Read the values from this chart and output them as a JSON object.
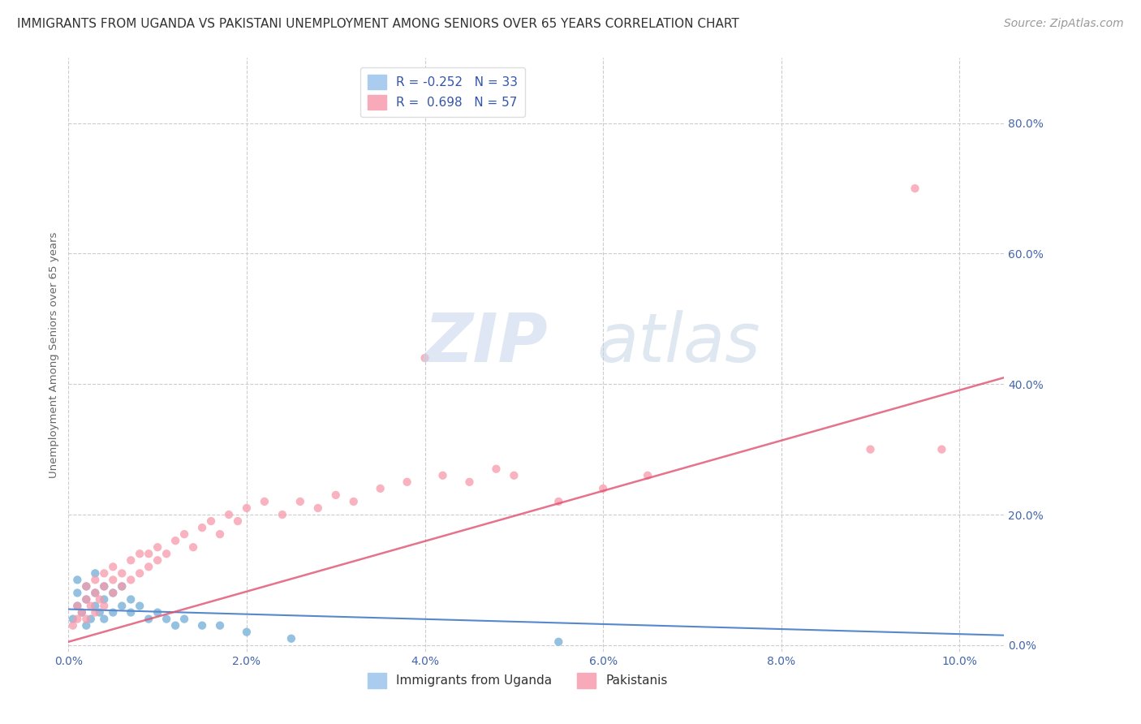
{
  "title": "IMMIGRANTS FROM UGANDA VS PAKISTANI UNEMPLOYMENT AMONG SENIORS OVER 65 YEARS CORRELATION CHART",
  "source": "Source: ZipAtlas.com",
  "ylabel": "Unemployment Among Seniors over 65 years",
  "xlim": [
    0.0,
    0.105
  ],
  "ylim": [
    -0.01,
    0.9
  ],
  "xtick_labels": [
    "0.0%",
    "2.0%",
    "4.0%",
    "6.0%",
    "8.0%",
    "10.0%"
  ],
  "xtick_vals": [
    0.0,
    0.02,
    0.04,
    0.06,
    0.08,
    0.1
  ],
  "ytick_labels": [
    "0.0%",
    "20.0%",
    "40.0%",
    "60.0%",
    "80.0%"
  ],
  "ytick_vals": [
    0.0,
    0.2,
    0.4,
    0.6,
    0.8
  ],
  "blue_scatter": [
    [
      0.0005,
      0.04
    ],
    [
      0.001,
      0.06
    ],
    [
      0.001,
      0.1
    ],
    [
      0.001,
      0.08
    ],
    [
      0.0015,
      0.05
    ],
    [
      0.002,
      0.03
    ],
    [
      0.002,
      0.07
    ],
    [
      0.002,
      0.09
    ],
    [
      0.0025,
      0.04
    ],
    [
      0.003,
      0.06
    ],
    [
      0.003,
      0.08
    ],
    [
      0.003,
      0.11
    ],
    [
      0.0035,
      0.05
    ],
    [
      0.004,
      0.04
    ],
    [
      0.004,
      0.07
    ],
    [
      0.004,
      0.09
    ],
    [
      0.005,
      0.05
    ],
    [
      0.005,
      0.08
    ],
    [
      0.006,
      0.06
    ],
    [
      0.006,
      0.09
    ],
    [
      0.007,
      0.07
    ],
    [
      0.007,
      0.05
    ],
    [
      0.008,
      0.06
    ],
    [
      0.009,
      0.04
    ],
    [
      0.01,
      0.05
    ],
    [
      0.011,
      0.04
    ],
    [
      0.012,
      0.03
    ],
    [
      0.013,
      0.04
    ],
    [
      0.015,
      0.03
    ],
    [
      0.017,
      0.03
    ],
    [
      0.02,
      0.02
    ],
    [
      0.025,
      0.01
    ],
    [
      0.055,
      0.005
    ]
  ],
  "pink_scatter": [
    [
      0.0005,
      0.03
    ],
    [
      0.001,
      0.04
    ],
    [
      0.001,
      0.06
    ],
    [
      0.0015,
      0.05
    ],
    [
      0.002,
      0.04
    ],
    [
      0.002,
      0.07
    ],
    [
      0.002,
      0.09
    ],
    [
      0.0025,
      0.06
    ],
    [
      0.003,
      0.05
    ],
    [
      0.003,
      0.08
    ],
    [
      0.003,
      0.1
    ],
    [
      0.0035,
      0.07
    ],
    [
      0.004,
      0.06
    ],
    [
      0.004,
      0.09
    ],
    [
      0.004,
      0.11
    ],
    [
      0.005,
      0.08
    ],
    [
      0.005,
      0.1
    ],
    [
      0.005,
      0.12
    ],
    [
      0.006,
      0.09
    ],
    [
      0.006,
      0.11
    ],
    [
      0.007,
      0.1
    ],
    [
      0.007,
      0.13
    ],
    [
      0.008,
      0.11
    ],
    [
      0.008,
      0.14
    ],
    [
      0.009,
      0.12
    ],
    [
      0.009,
      0.14
    ],
    [
      0.01,
      0.13
    ],
    [
      0.01,
      0.15
    ],
    [
      0.011,
      0.14
    ],
    [
      0.012,
      0.16
    ],
    [
      0.013,
      0.17
    ],
    [
      0.014,
      0.15
    ],
    [
      0.015,
      0.18
    ],
    [
      0.016,
      0.19
    ],
    [
      0.017,
      0.17
    ],
    [
      0.018,
      0.2
    ],
    [
      0.019,
      0.19
    ],
    [
      0.02,
      0.21
    ],
    [
      0.022,
      0.22
    ],
    [
      0.024,
      0.2
    ],
    [
      0.026,
      0.22
    ],
    [
      0.028,
      0.21
    ],
    [
      0.03,
      0.23
    ],
    [
      0.032,
      0.22
    ],
    [
      0.035,
      0.24
    ],
    [
      0.038,
      0.25
    ],
    [
      0.04,
      0.44
    ],
    [
      0.042,
      0.26
    ],
    [
      0.045,
      0.25
    ],
    [
      0.048,
      0.27
    ],
    [
      0.05,
      0.26
    ],
    [
      0.055,
      0.22
    ],
    [
      0.06,
      0.24
    ],
    [
      0.065,
      0.26
    ],
    [
      0.09,
      0.3
    ],
    [
      0.095,
      0.7
    ],
    [
      0.098,
      0.3
    ]
  ],
  "blue_line_x": [
    0.0,
    0.105
  ],
  "blue_line_y": [
    0.055,
    0.015
  ],
  "pink_line_x": [
    0.0,
    0.105
  ],
  "pink_line_y": [
    0.005,
    0.41
  ],
  "scatter_size": 55,
  "blue_color": "#88bbdd",
  "pink_color": "#f899aa",
  "blue_line_color": "#5588cc",
  "pink_line_color": "#e05070",
  "background_color": "#ffffff",
  "grid_color": "#cccccc",
  "title_fontsize": 11,
  "axis_label_fontsize": 9.5,
  "tick_fontsize": 10,
  "legend_fontsize": 11,
  "source_fontsize": 10,
  "ylabel_color": "#666666",
  "tick_color": "#4466aa",
  "title_color": "#333333"
}
